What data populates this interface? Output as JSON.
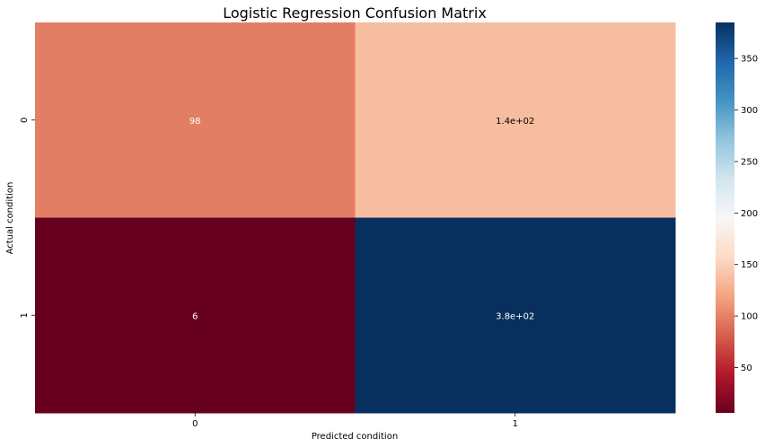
{
  "chart_data": {
    "type": "heatmap",
    "title": "Logistic Regression Confusion Matrix",
    "xlabel": "Predicted condition",
    "ylabel": "Actual condition",
    "x_categories": [
      "0",
      "1"
    ],
    "y_categories": [
      "0",
      "1"
    ],
    "values": [
      [
        98,
        140
      ],
      [
        6,
        380
      ]
    ],
    "annotations": [
      [
        "98",
        "1.4e+02"
      ],
      [
        "6",
        "3.8e+02"
      ]
    ],
    "colormap": "RdBu",
    "color_range": [
      6,
      385
    ],
    "colorbar_ticks": [
      50,
      100,
      150,
      200,
      250,
      300,
      350
    ],
    "colors": {
      "cell_0_0": "#e27e64",
      "cell_0_1": "#f6bda0",
      "cell_1_0": "#67001f",
      "cell_1_1": "#08305f"
    },
    "colorbar_gradient": [
      "#67001f",
      "#b2182b",
      "#d6604d",
      "#f4a582",
      "#fddbc7",
      "#f7f7f7",
      "#d1e5f0",
      "#92c5de",
      "#4393c3",
      "#2166ac",
      "#053061"
    ]
  }
}
